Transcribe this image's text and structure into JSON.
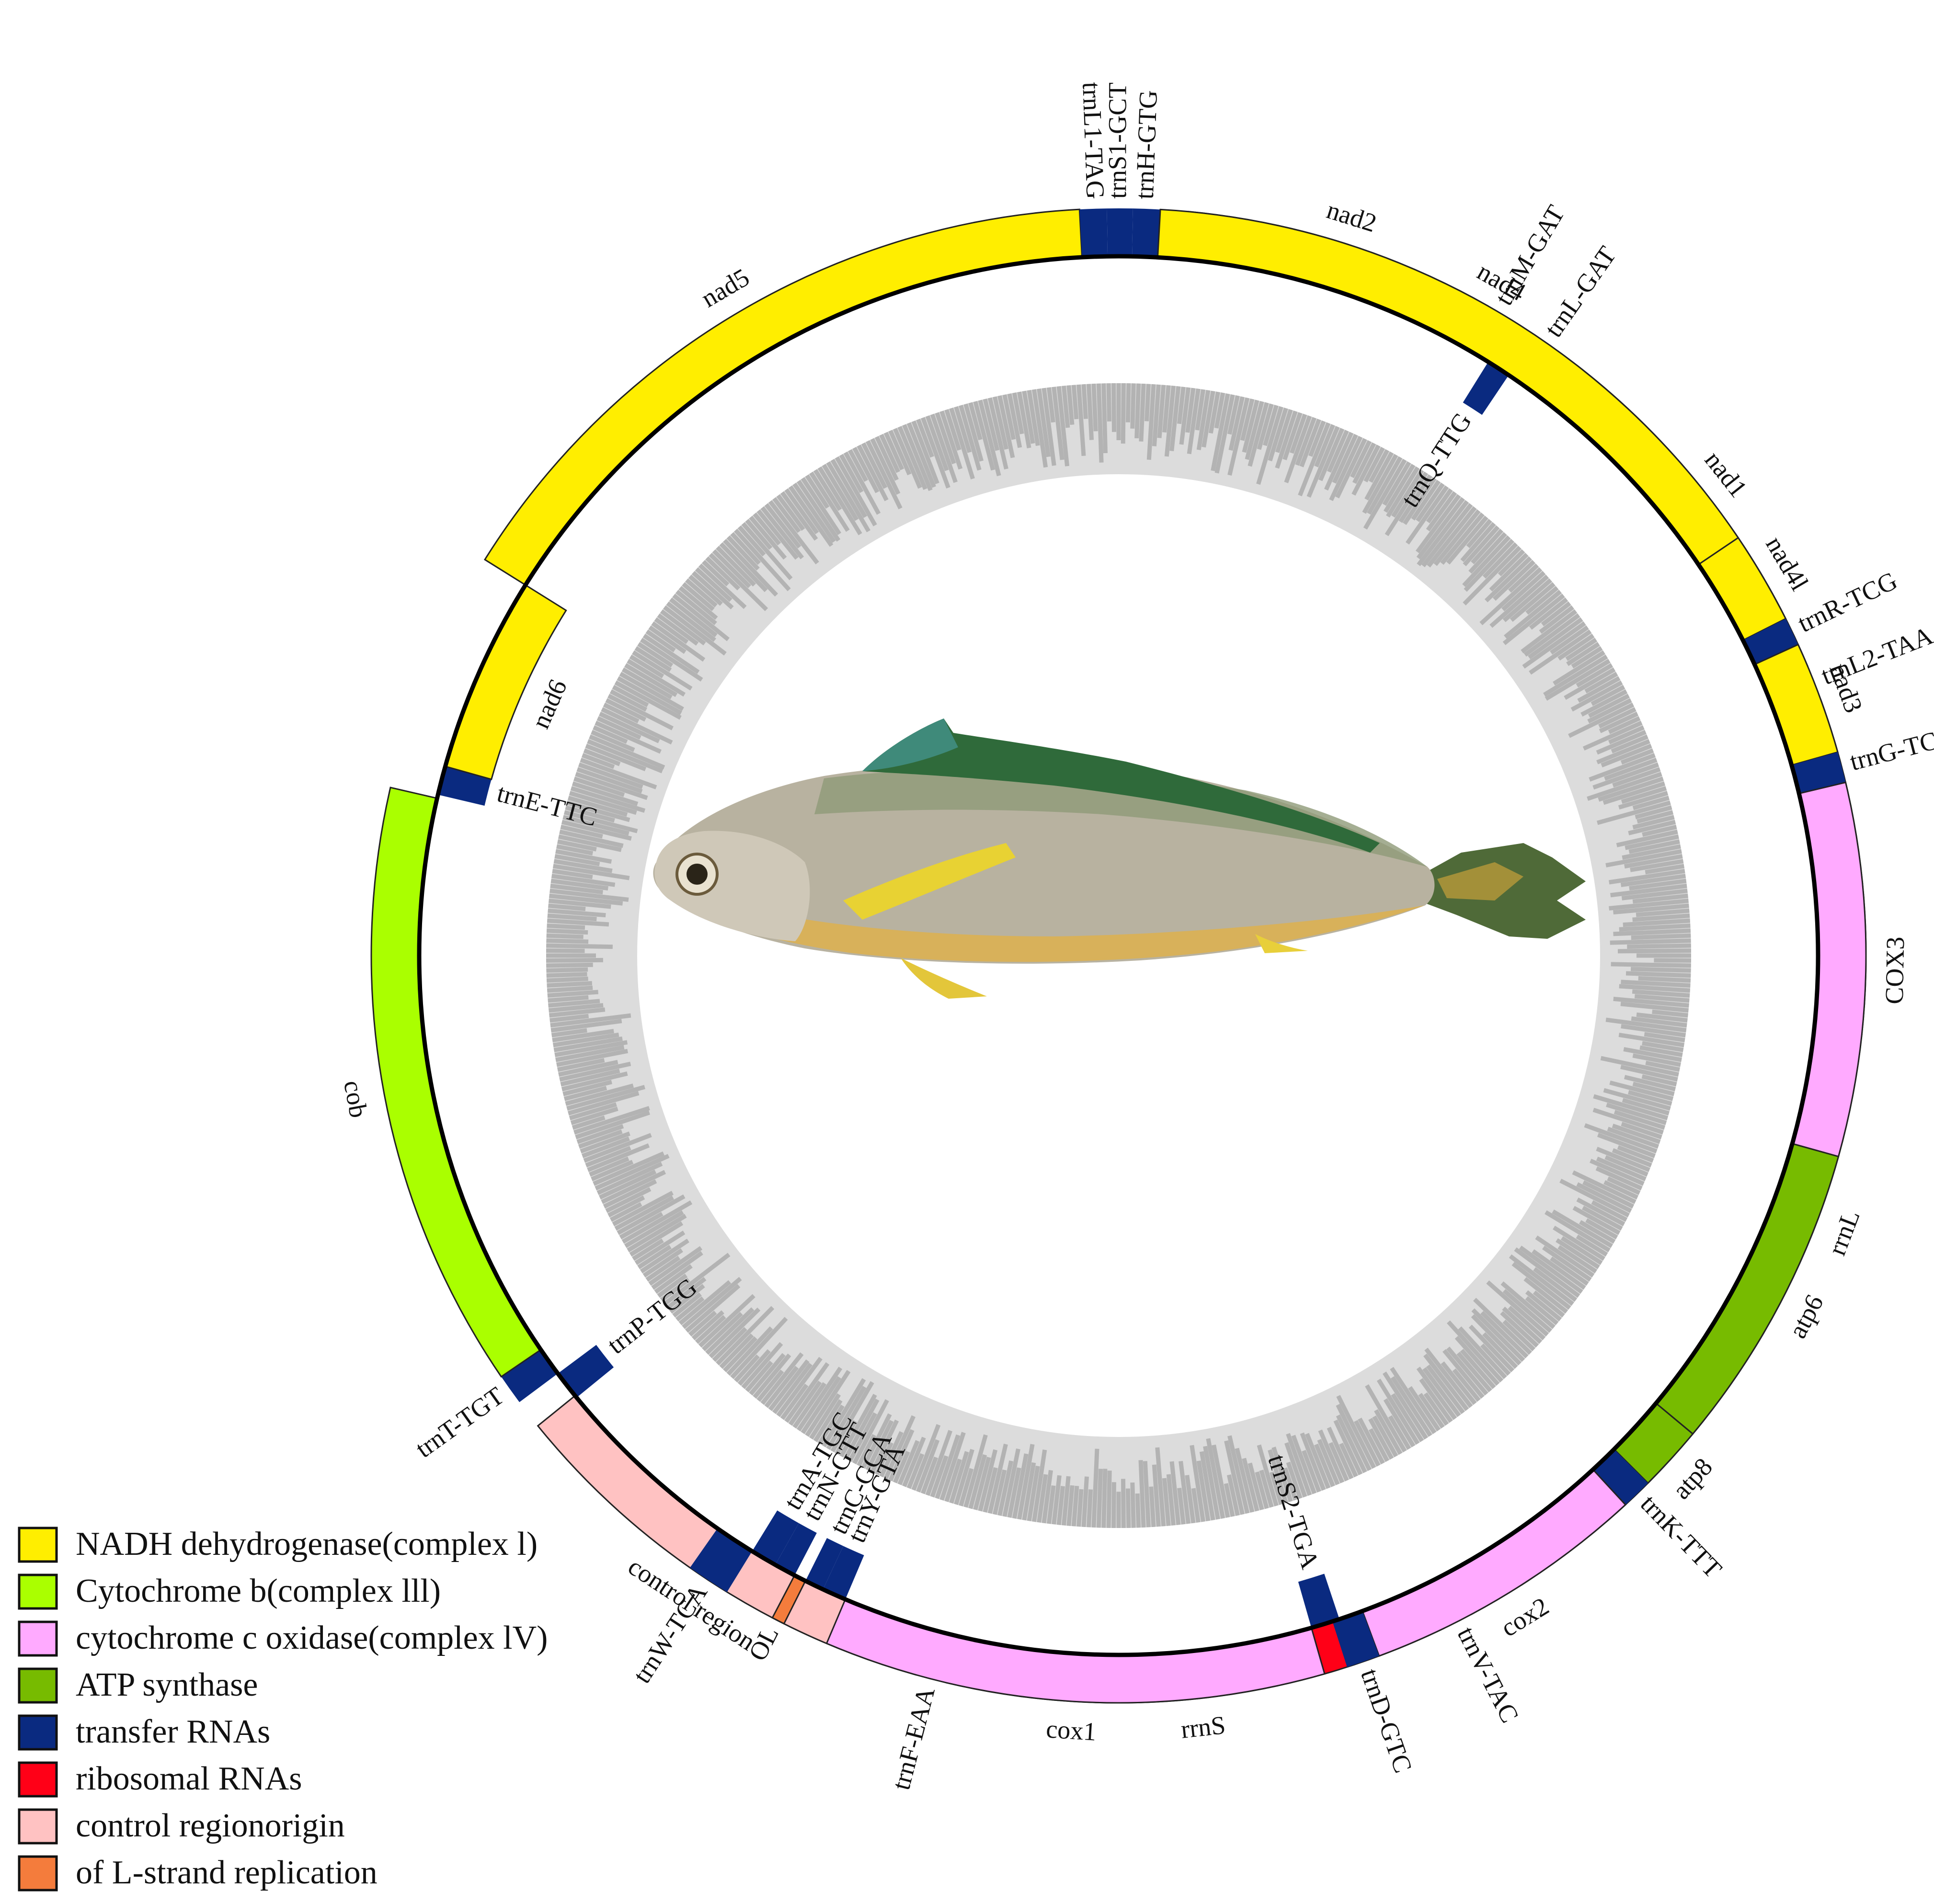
{
  "colors": {
    "nadh": "#ffee00",
    "cytb": "#aaff00",
    "cox": "#ffaaff",
    "atp": "#77bb00",
    "trna": "#0a2a80",
    "rrna": "#ff0017",
    "control": "#ffc2c2",
    "origin": "#f47c3c",
    "gc_outer": "#b3b3b3",
    "gc_inner": "#dcdcdc"
  },
  "genes": [
    {
      "name": "nad2",
      "start": 5.4,
      "end": 29.6,
      "strand": "outer",
      "type": "nadh"
    },
    {
      "name": "trnM-GAT",
      "start": 29.6,
      "end": 31.6,
      "strand": "outer",
      "type": "trna"
    },
    {
      "name": "trnQ-TTG",
      "start": 31.9,
      "end": 33.9,
      "strand": "inner",
      "type": "trna"
    },
    {
      "name": "trnL-GAT",
      "start": 34.0,
      "end": 36.0,
      "strand": "outer",
      "type": "trna"
    },
    {
      "name": "nad1",
      "start": 36.0,
      "end": 67.2,
      "strand": "outer",
      "type": "nadh"
    },
    {
      "name": "trnL2-TAA",
      "start": 67.2,
      "end": 70.0,
      "strand": "outer",
      "type": "trna"
    },
    {
      "name": "rrnL",
      "start": 70.0,
      "end": 151.8,
      "strand": "outer",
      "type": "rrna"
    },
    {
      "name": "trnV-TAC",
      "start": 151.8,
      "end": 154.2,
      "strand": "outer",
      "type": "trna"
    },
    {
      "name": "rrnS",
      "start": 154.2,
      "end": 193.3,
      "strand": "outer",
      "type": "rrna"
    },
    {
      "name": "trnF-EAA",
      "start": 193.3,
      "end": 195.7,
      "strand": "outer",
      "type": "trna"
    },
    {
      "name": "control region",
      "start": 195.7,
      "end": 231.0,
      "strand": "outer",
      "type": "control"
    },
    {
      "name": "trnP-TGG",
      "start": 230.8,
      "end": 233.3,
      "strand": "inner",
      "type": "trna"
    },
    {
      "name": "trnT-TGT",
      "start": 233.3,
      "end": 235.7,
      "strand": "outer",
      "type": "trna"
    },
    {
      "name": "cob",
      "start": 235.7,
      "end": 283.0,
      "strand": "outer",
      "type": "cytb"
    },
    {
      "name": "trnE-TTC",
      "start": 283.3,
      "end": 285.7,
      "strand": "inner",
      "type": "trna"
    },
    {
      "name": "nad6",
      "start": 285.7,
      "end": 302.0,
      "strand": "inner",
      "type": "nadh"
    },
    {
      "name": "nad5",
      "start": 302.0,
      "end": 357.0,
      "strand": "outer",
      "type": "nadh"
    },
    {
      "name": "trnL1-TAG",
      "start": 357.0,
      "end": 359.1,
      "strand": "outer",
      "type": "trna"
    },
    {
      "name": "trnS1-GCT",
      "start": 359.1,
      "end": 361.1,
      "strand": "outer",
      "type": "trna"
    },
    {
      "name": "trnH-GTG",
      "start": 361.1,
      "end": 363.2,
      "strand": "outer",
      "type": "trna"
    },
    {
      "name": "nad4",
      "start": 363.2,
      "end": 416.0,
      "strand": "outer",
      "type": "nadh"
    },
    {
      "name": "nad4l",
      "start": 416.0,
      "end": 423.2,
      "strand": "outer",
      "type": "nadh"
    },
    {
      "name": "trnR-TCG",
      "start": 423.2,
      "end": 425.4,
      "strand": "outer",
      "type": "trna"
    },
    {
      "name": "nad3",
      "start": 425.4,
      "end": 434.2,
      "strand": "outer",
      "type": "nadh"
    },
    {
      "name": "trnG-TCC",
      "start": 434.2,
      "end": 436.6,
      "strand": "outer",
      "type": "trna"
    },
    {
      "name": "COX3",
      "start": 436.6,
      "end": 465.6,
      "strand": "outer",
      "type": "cox"
    },
    {
      "name": "atp6",
      "start": 465.6,
      "end": 489.8,
      "strand": "outer",
      "type": "atp"
    },
    {
      "name": "atp8",
      "start": 489.8,
      "end": 494.9,
      "strand": "outer",
      "type": "atp"
    },
    {
      "name": "trnK-TTT",
      "start": 494.9,
      "end": 497.3,
      "strand": "outer",
      "type": "trna"
    },
    {
      "name": "cox2",
      "start": 497.3,
      "end": 519.6,
      "strand": "outer",
      "type": "cox"
    },
    {
      "name": "trnD-GTC",
      "start": 519.6,
      "end": 522.2,
      "strand": "outer",
      "type": "trna"
    },
    {
      "name": "trnS2-TGA",
      "start": 521.6,
      "end": 524.0,
      "strand": "inner",
      "type": "trna"
    },
    {
      "name": "cox1",
      "start": 524.0,
      "end": 563.0,
      "strand": "outer",
      "type": "cox"
    },
    {
      "name": "trnY-GTA",
      "start": 563.0,
      "end": 565.0,
      "strand": "inner",
      "type": "trna"
    },
    {
      "name": "trnC-GCA",
      "start": 565.0,
      "end": 566.6,
      "strand": "inner",
      "type": "trna"
    },
    {
      "name": "OL",
      "start": 566.6,
      "end": 567.6,
      "strand": "outer",
      "type": "origin"
    },
    {
      "name": "trnN-GTT",
      "start": 567.6,
      "end": 569.4,
      "strand": "inner",
      "type": "trna"
    },
    {
      "name": "trnA-TGC",
      "start": 569.4,
      "end": 571.6,
      "strand": "inner",
      "type": "trna"
    },
    {
      "name": "trnW-TCA",
      "start": 571.6,
      "end": 575.0,
      "strand": "outer",
      "type": "trna"
    }
  ],
  "legend": [
    {
      "label": "NADH dehydrogenase(complex l)",
      "type": "nadh"
    },
    {
      "label": "Cytochrome b(complex lll)",
      "type": "cytb"
    },
    {
      "label": "cytochrome c oxidase(complex lV)",
      "type": "cox"
    },
    {
      "label": "ATP synthase",
      "type": "atp"
    },
    {
      "label": "transfer RNAs",
      "type": "trna"
    },
    {
      "label": "ribosomal RNAs",
      "type": "rrna"
    },
    {
      "label": "control regionorigin",
      "type": "control"
    },
    {
      "label": "of L-strand replication",
      "type": "origin"
    }
  ]
}
